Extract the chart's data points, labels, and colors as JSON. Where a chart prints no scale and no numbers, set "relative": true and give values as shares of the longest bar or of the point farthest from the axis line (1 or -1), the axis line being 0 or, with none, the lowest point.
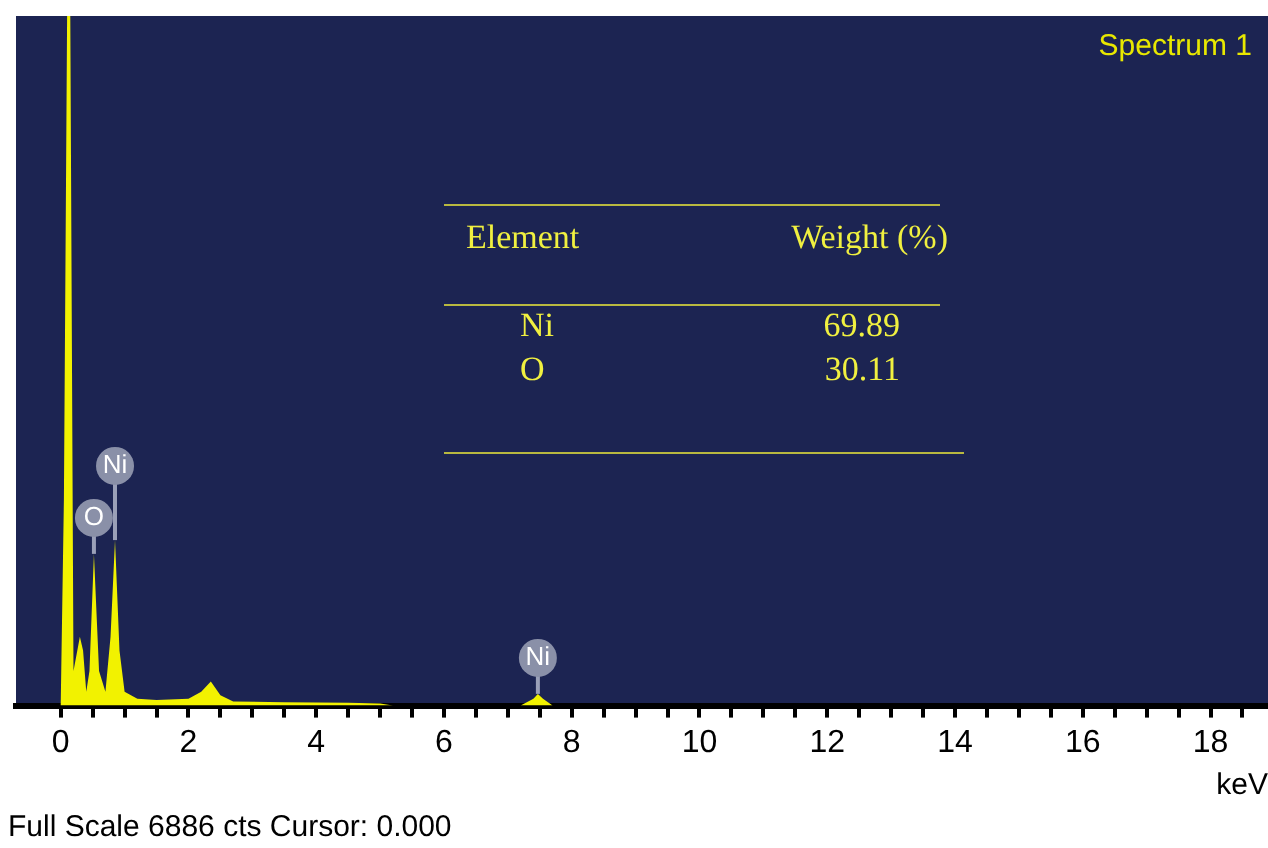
{
  "chart_data": {
    "type": "area",
    "title": "Spectrum 1",
    "xlabel": "keV",
    "relative": true,
    "color": "#f2f200",
    "grid": false,
    "legend": false,
    "x": [
      -0.1,
      0.0,
      0.05,
      0.1,
      0.15,
      0.2,
      0.3,
      0.35,
      0.4,
      0.45,
      0.52,
      0.6,
      0.7,
      0.78,
      0.85,
      0.92,
      1.0,
      1.2,
      1.5,
      2.0,
      2.2,
      2.35,
      2.5,
      2.7,
      3.5,
      4.5,
      5.0,
      5.2,
      7.2,
      7.4,
      7.47,
      7.55,
      7.7,
      18.9
    ],
    "values": [
      0,
      0,
      0.3,
      1.0,
      1.0,
      0.05,
      0.1,
      0.08,
      0.02,
      0.05,
      0.22,
      0.05,
      0.02,
      0.1,
      0.24,
      0.08,
      0.02,
      0.01,
      0.008,
      0.01,
      0.02,
      0.035,
      0.015,
      0.006,
      0.005,
      0.004,
      0.003,
      0,
      0,
      0.01,
      0.017,
      0.01,
      0,
      0
    ],
    "xlim": [
      -0.7,
      18.9
    ],
    "xticks": [
      0,
      {
        "value": 0.5,
        "label": null
      },
      {
        "value": 1,
        "label": null
      },
      {
        "value": 1.5,
        "label": null
      },
      2,
      {
        "value": 2.5,
        "label": null
      },
      {
        "value": 3,
        "label": null
      },
      {
        "value": 3.5,
        "label": null
      },
      4,
      {
        "value": 4.5,
        "label": null
      },
      {
        "value": 5,
        "label": null
      },
      {
        "value": 5.5,
        "label": null
      },
      6,
      {
        "value": 6.5,
        "label": null
      },
      {
        "value": 7,
        "label": null
      },
      {
        "value": 7.5,
        "label": null
      },
      8,
      {
        "value": 8.5,
        "label": null
      },
      {
        "value": 9,
        "label": null
      },
      {
        "value": 9.5,
        "label": null
      },
      10,
      {
        "value": 10.5,
        "label": null
      },
      {
        "value": 11,
        "label": null
      },
      {
        "value": 11.5,
        "label": null
      },
      12,
      {
        "value": 12.5,
        "label": null
      },
      {
        "value": 13,
        "label": null
      },
      {
        "value": 13.5,
        "label": null
      },
      14,
      {
        "value": 14.5,
        "label": null
      },
      {
        "value": 15,
        "label": null
      },
      {
        "value": 15.5,
        "label": null
      },
      16,
      {
        "value": 16.5,
        "label": null
      },
      {
        "value": 17,
        "label": null
      },
      {
        "value": 17.5,
        "label": null
      },
      18,
      {
        "value": 18.5,
        "label": null
      }
    ],
    "annotations": [
      "Full Scale 6886 cts Cursor: 0.000",
      "Element",
      "Weight (%)",
      "Ni",
      "69.89",
      "O",
      "30.11",
      {
        "text": "O",
        "x": 0.52,
        "y": 0.22
      },
      {
        "text": "Ni",
        "x": 0.85,
        "y": 0.24
      },
      {
        "text": "Ni",
        "x": 7.47,
        "y": 0.017
      }
    ]
  }
}
